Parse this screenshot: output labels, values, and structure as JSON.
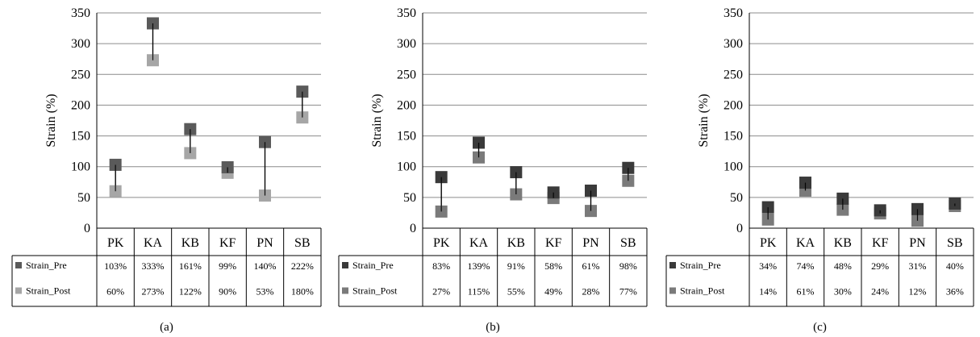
{
  "chart_data": [
    {
      "type": "scatter",
      "panel_label": "(a)",
      "ylabel": "Strain (%)",
      "ylim": [
        0,
        350
      ],
      "yticks": [
        0,
        50,
        100,
        150,
        200,
        250,
        300,
        350
      ],
      "categories": [
        "PK",
        "KA",
        "KB",
        "KF",
        "PN",
        "SB"
      ],
      "series": [
        {
          "name": "Strain_Pre",
          "values": [
            103,
            333,
            161,
            99,
            140,
            222
          ],
          "labels": [
            "103%",
            "333%",
            "161%",
            "99%",
            "140%",
            "222%"
          ],
          "color": "#5a5a5a"
        },
        {
          "name": "Strain_Post",
          "values": [
            60,
            273,
            122,
            90,
            53,
            180
          ],
          "labels": [
            "60%",
            "273%",
            "122%",
            "90%",
            "53%",
            "180%"
          ],
          "color": "#a6a6a6"
        }
      ],
      "grid": true,
      "legend": "data-table"
    },
    {
      "type": "scatter",
      "panel_label": "(b)",
      "ylabel": "Strain (%)",
      "ylim": [
        0,
        350
      ],
      "yticks": [
        0,
        50,
        100,
        150,
        200,
        250,
        300,
        350
      ],
      "categories": [
        "PK",
        "KA",
        "KB",
        "KF",
        "PN",
        "SB"
      ],
      "series": [
        {
          "name": "Strain_Pre",
          "values": [
            83,
            139,
            91,
            58,
            61,
            98
          ],
          "labels": [
            "83%",
            "139%",
            "91%",
            "58%",
            "61%",
            "98%"
          ],
          "color": "#3a3a3a"
        },
        {
          "name": "Strain_Post",
          "values": [
            27,
            115,
            55,
            49,
            28,
            77
          ],
          "labels": [
            "27%",
            "115%",
            "55%",
            "49%",
            "28%",
            "77%"
          ],
          "color": "#7a7a7a"
        }
      ],
      "grid": true,
      "legend": "data-table"
    },
    {
      "type": "scatter",
      "panel_label": "(c)",
      "ylabel": "Strain (%)",
      "ylim": [
        0,
        350
      ],
      "yticks": [
        0,
        50,
        100,
        150,
        200,
        250,
        300,
        350
      ],
      "categories": [
        "PK",
        "KA",
        "KB",
        "KF",
        "PN",
        "SB"
      ],
      "series": [
        {
          "name": "Strain_Pre",
          "values": [
            34,
            74,
            48,
            29,
            31,
            40
          ],
          "labels": [
            "34%",
            "74%",
            "48%",
            "29%",
            "31%",
            "40%"
          ],
          "color": "#3a3a3a"
        },
        {
          "name": "Strain_Post",
          "values": [
            14,
            61,
            30,
            24,
            12,
            36
          ],
          "labels": [
            "14%",
            "61%",
            "30%",
            "24%",
            "12%",
            "36%"
          ],
          "color": "#7a7a7a"
        }
      ],
      "grid": true,
      "legend": "data-table"
    }
  ]
}
